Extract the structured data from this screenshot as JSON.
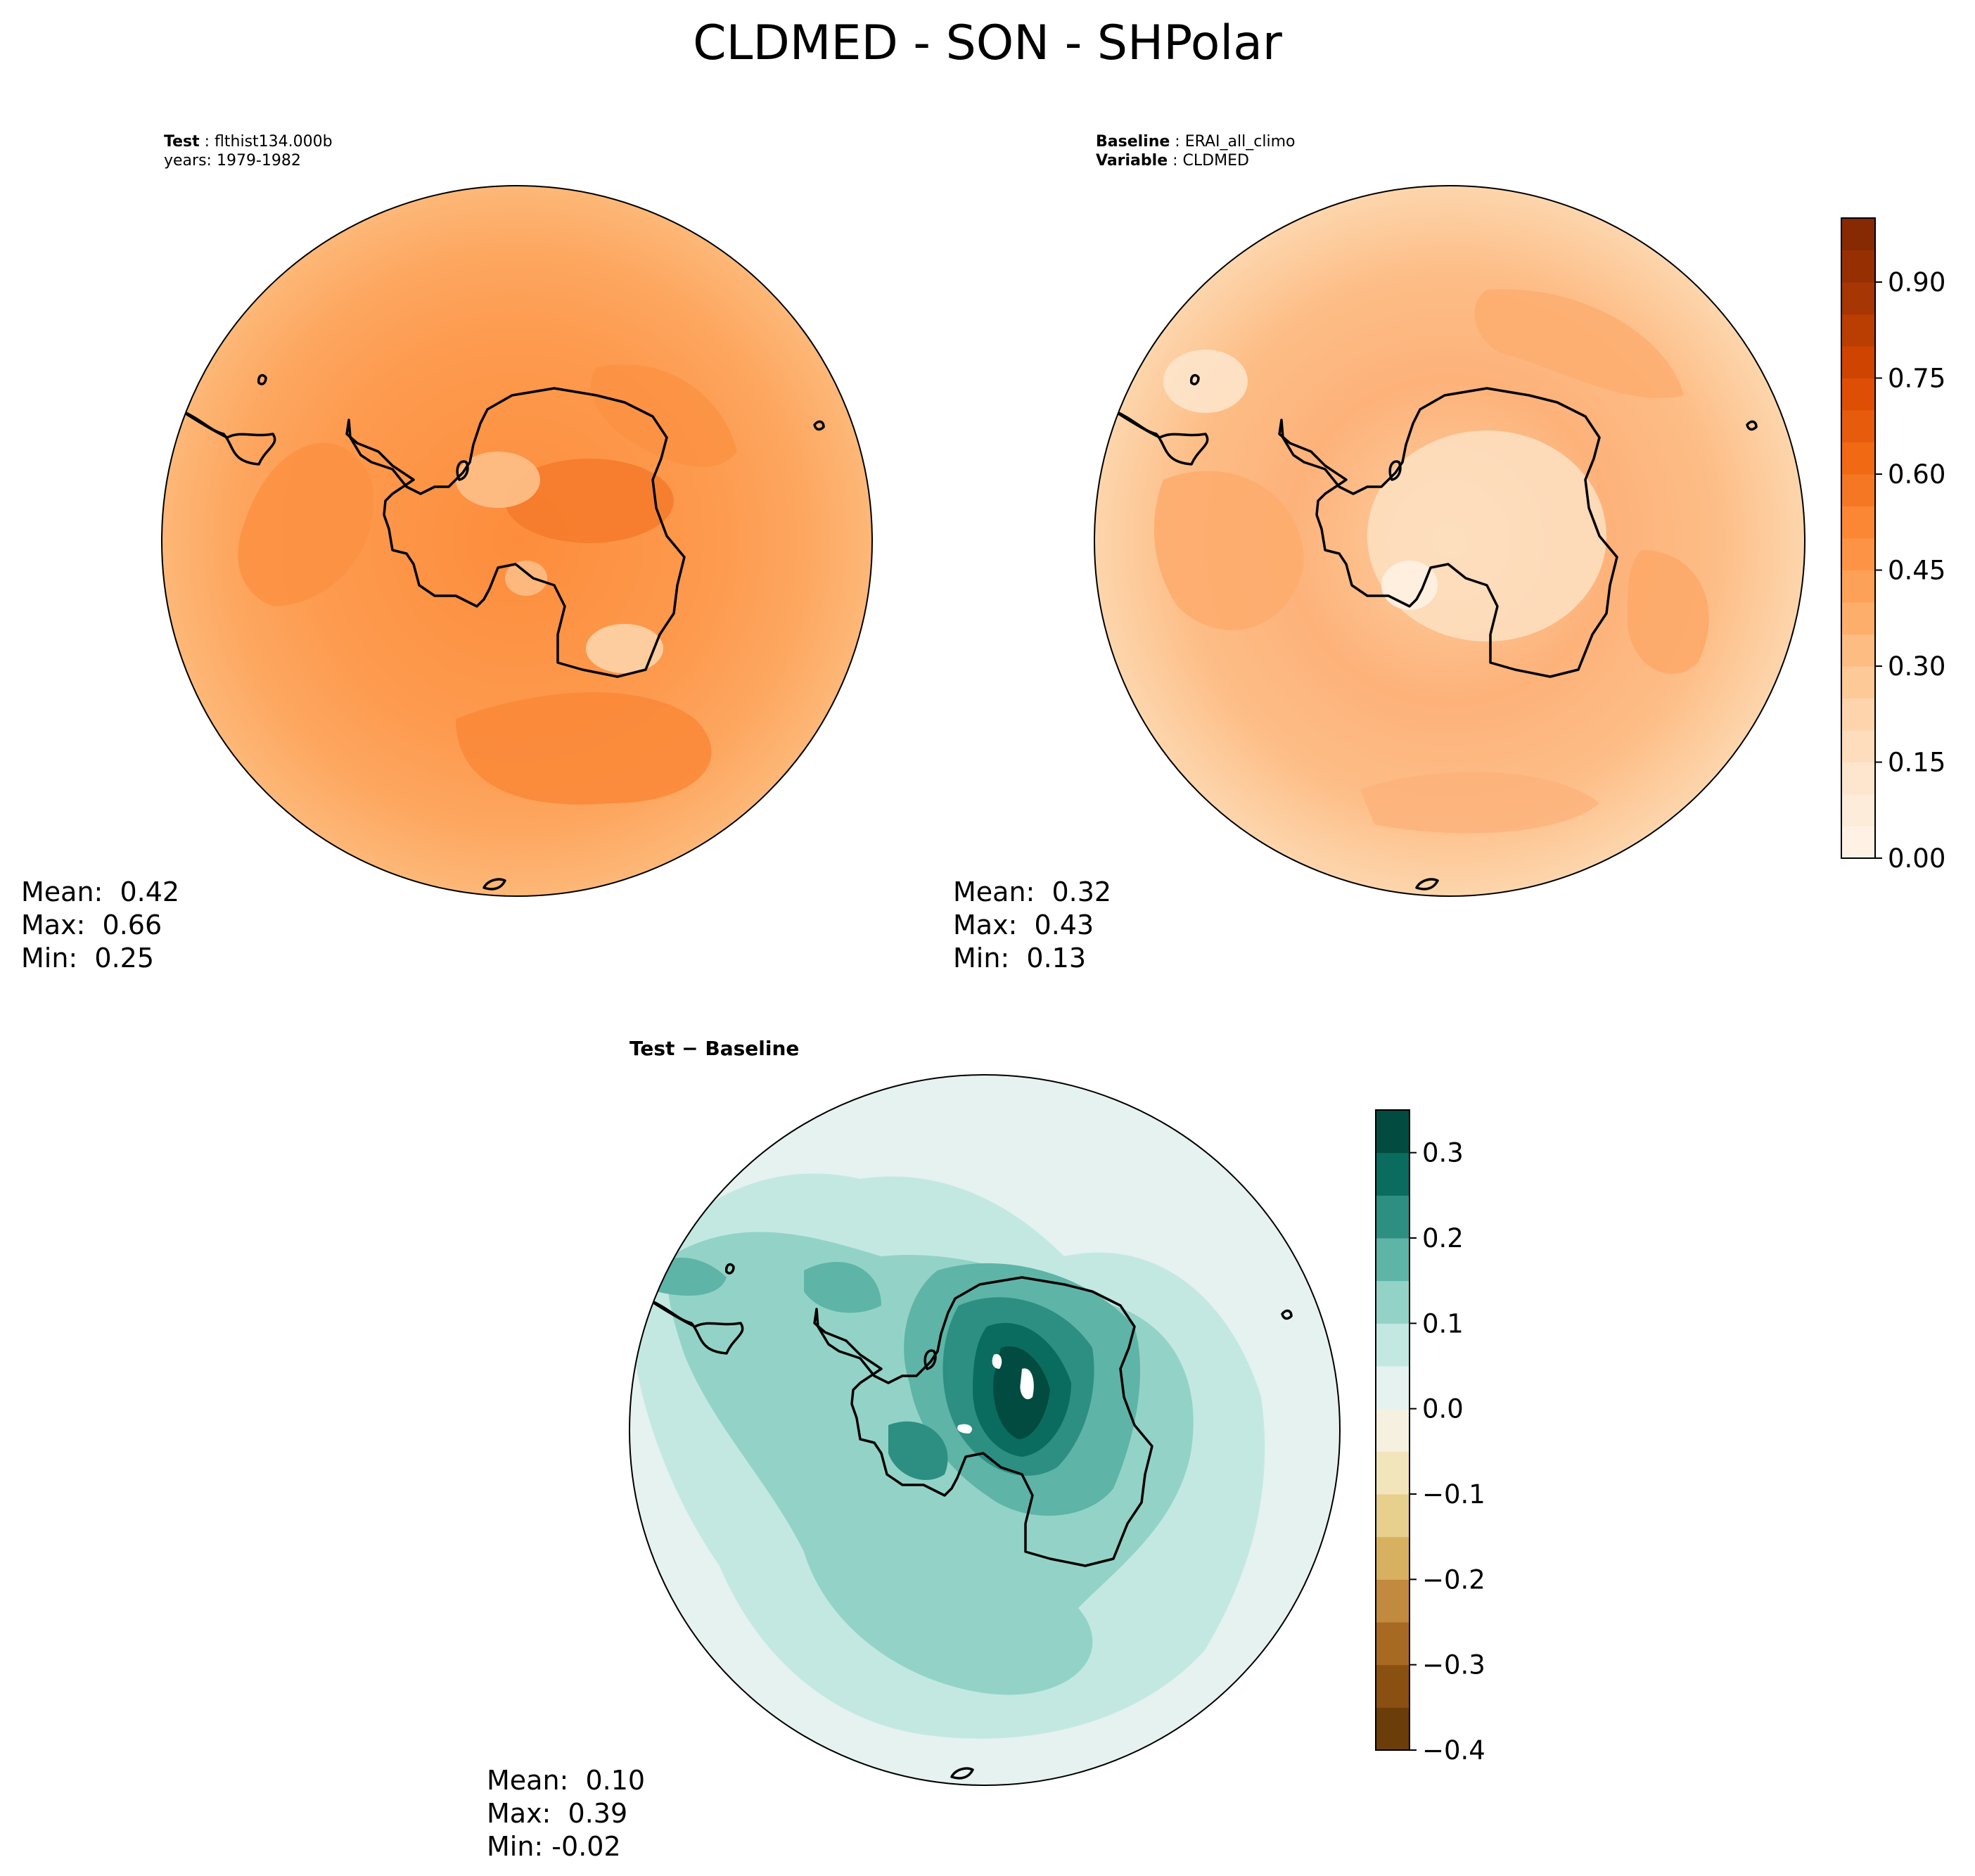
{
  "title": "CLDMED - SON - SHPolar",
  "panels": [
    {
      "id": "test",
      "header": [
        {
          "label": "Test",
          "value": "flthist134.000b"
        },
        {
          "label": "",
          "value": "years: 1979-1982"
        }
      ],
      "stats": {
        "mean": "Mean:  0.42",
        "max": "Max:  0.66",
        "min": "Min:  0.25"
      },
      "palette": "orange",
      "field_range": [
        0.25,
        0.66
      ]
    },
    {
      "id": "baseline",
      "header": [
        {
          "label": "Baseline",
          "value": "ERAI_all_climo"
        },
        {
          "label": "Variable",
          "value": "CLDMED"
        }
      ],
      "stats": {
        "mean": "Mean:  0.32",
        "max": "Max:  0.43",
        "min": "Min:  0.13"
      },
      "palette": "orange",
      "field_range": [
        0.13,
        0.43
      ]
    },
    {
      "id": "diff",
      "header": [
        {
          "label": "Test − Baseline",
          "value": ""
        }
      ],
      "stats": {
        "mean": "Mean:  0.10",
        "max": "Max:  0.39",
        "min": "Min: -0.02"
      },
      "palette": "brbg",
      "field_range": [
        -0.02,
        0.39
      ]
    }
  ],
  "chart_data": [
    {
      "type": "heatmap",
      "name": "test",
      "projection": "south-polar-stereographic",
      "colorbar": {
        "range": [
          0.0,
          1.0
        ],
        "ticks": [
          0.0,
          0.15,
          0.3,
          0.45,
          0.6,
          0.75,
          0.9
        ],
        "tick_labels": [
          "0.00",
          "0.15",
          "0.30",
          "0.45",
          "0.60",
          "0.75",
          "0.90"
        ],
        "levels": 20,
        "colors": [
          "#fff5eb",
          "#fee6ce",
          "#fdd0a2",
          "#fdae6b",
          "#fd8d3c",
          "#f16913",
          "#d94801",
          "#a63603",
          "#7f2704"
        ]
      },
      "mean": 0.42,
      "max": 0.66,
      "min": 0.25
    },
    {
      "type": "heatmap",
      "name": "baseline",
      "projection": "south-polar-stereographic",
      "mean": 0.32,
      "max": 0.43,
      "min": 0.13
    },
    {
      "type": "heatmap",
      "name": "difference",
      "projection": "south-polar-stereographic",
      "colorbar": {
        "range": [
          -0.4,
          0.35
        ],
        "ticks": [
          -0.4,
          -0.3,
          -0.2,
          -0.1,
          0.0,
          0.1,
          0.2,
          0.3
        ],
        "tick_labels": [
          "−0.4",
          "−0.3",
          "−0.2",
          "−0.1",
          "0.0",
          "0.1",
          "0.2",
          "0.3"
        ],
        "boundaries": [
          -0.4,
          -0.35,
          -0.3,
          -0.25,
          -0.2,
          -0.15,
          -0.1,
          -0.05,
          0.0,
          0.05,
          0.1,
          0.15,
          0.2,
          0.25,
          0.3,
          0.35
        ],
        "colors": [
          "#6a3d09",
          "#8a5011",
          "#a86a22",
          "#c28a3e",
          "#d8b160",
          "#e7cf8d",
          "#f2e4bb",
          "#f6f0e0",
          "#e5f2ef",
          "#c3e8e2",
          "#93d3c7",
          "#5eb4a7",
          "#2c8f82",
          "#0a6c5f",
          "#024b40"
        ]
      },
      "mean": 0.1,
      "max": 0.39,
      "min": -0.02
    }
  ],
  "colors": {
    "land_outline": "#000000",
    "orange_base": "#fdae6b",
    "orange_mid": "#fd8d3c",
    "teal_base": "#93d3c7",
    "teal_dark": "#024b40"
  }
}
